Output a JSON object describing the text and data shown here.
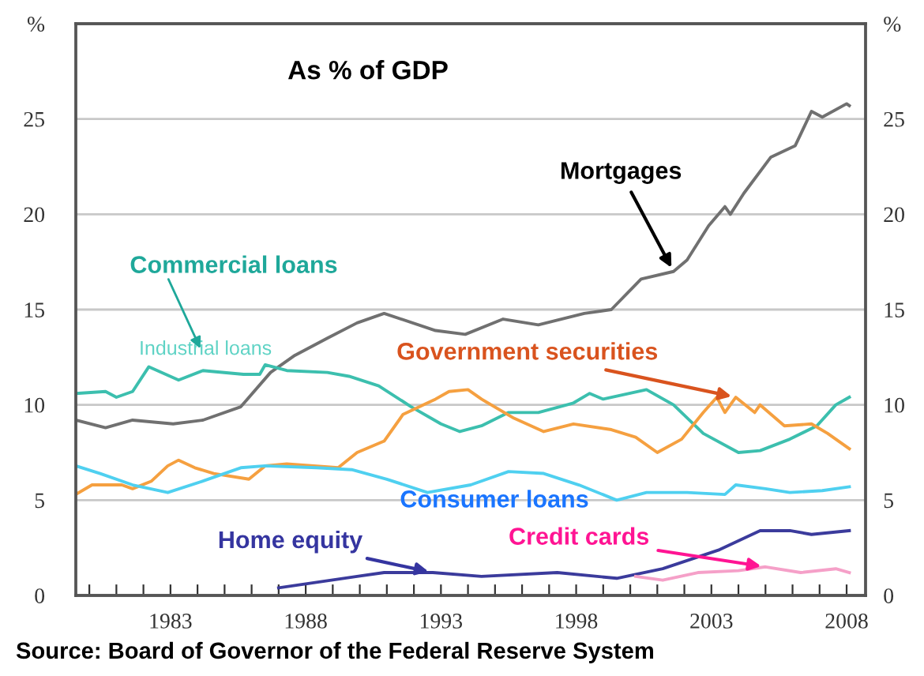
{
  "chart_data": {
    "type": "line",
    "title": "As % of GDP",
    "xlim": [
      1979.5,
      2008.7
    ],
    "ylim": [
      0,
      30
    ],
    "y2lim": [
      0,
      30
    ],
    "xticks": [
      {
        "value": 1980,
        "label": null
      },
      {
        "value": 1981,
        "label": null
      },
      {
        "value": 1982,
        "label": null
      },
      1983,
      {
        "value": 1984,
        "label": null
      },
      {
        "value": 1985,
        "label": null
      },
      {
        "value": 1986,
        "label": null
      },
      {
        "value": 1987,
        "label": null
      },
      1988,
      {
        "value": 1989,
        "label": null
      },
      {
        "value": 1990,
        "label": null
      },
      {
        "value": 1991,
        "label": null
      },
      {
        "value": 1992,
        "label": null
      },
      1993,
      {
        "value": 1994,
        "label": null
      },
      {
        "value": 1995,
        "label": null
      },
      {
        "value": 1996,
        "label": null
      },
      {
        "value": 1997,
        "label": null
      },
      1998,
      {
        "value": 1999,
        "label": null
      },
      {
        "value": 2000,
        "label": null
      },
      {
        "value": 2001,
        "label": null
      },
      {
        "value": 2002,
        "label": null
      },
      2003,
      {
        "value": 2004,
        "label": null
      },
      {
        "value": 2005,
        "label": null
      },
      {
        "value": 2006,
        "label": null
      },
      {
        "value": 2007,
        "label": null
      },
      2008
    ],
    "yticks": [
      0,
      5,
      10,
      15,
      20,
      25,
      {
        "value": 30,
        "label": "%"
      }
    ],
    "y2ticks": [
      0,
      5,
      10,
      15,
      20,
      25,
      {
        "value": 30,
        "label": "%"
      }
    ],
    "grid": "y",
    "legend": false,
    "marker": "none",
    "line_style": "solid",
    "series": [
      {
        "name": "Mortgages",
        "color": "#707070",
        "x": [
          1979.5,
          1980.6,
          1981.6,
          1983.1,
          1984.2,
          1985.6,
          1986.7,
          1987.6,
          1988.8,
          1989.9,
          1990.9,
          1992.8,
          1993.9,
          1995.3,
          1996.6,
          1998.3,
          1999.3,
          2000.4,
          2001.6,
          2002.1,
          2002.9,
          2003.5,
          2003.7,
          2004.2,
          2005.2,
          2006.1,
          2006.7,
          2007.1,
          2008.0,
          2008.1
        ],
        "values": [
          9.2,
          8.8,
          9.2,
          9.0,
          9.2,
          9.9,
          11.7,
          12.6,
          13.5,
          14.3,
          14.8,
          13.9,
          13.7,
          14.5,
          14.2,
          14.8,
          15.0,
          16.6,
          17.0,
          17.6,
          19.4,
          20.4,
          20.0,
          21.1,
          23.0,
          23.6,
          25.4,
          25.1,
          25.8,
          25.7
        ]
      },
      {
        "name": "Commercial loans",
        "color": "#3cbfae",
        "x": [
          1979.5,
          1980.6,
          1981.0,
          1981.6,
          1982.2,
          1983.3,
          1984.2,
          1985.7,
          1986.3,
          1986.5,
          1987.3,
          1988.8,
          1989.6,
          1990.7,
          1991.9,
          1993.0,
          1993.7,
          1994.5,
          1995.5,
          1996.6,
          1997.9,
          1998.5,
          1999.0,
          2000.6,
          2001.6,
          2002.7,
          2004.0,
          2004.8,
          2005.9,
          2006.9,
          2007.6,
          2008.1
        ],
        "values": [
          10.6,
          10.7,
          10.4,
          10.7,
          12.0,
          11.3,
          11.8,
          11.6,
          11.6,
          12.1,
          11.8,
          11.7,
          11.5,
          11.0,
          9.9,
          9.0,
          8.6,
          8.9,
          9.6,
          9.6,
          10.1,
          10.6,
          10.3,
          10.8,
          10.0,
          8.5,
          7.5,
          7.6,
          8.2,
          8.9,
          10.0,
          10.4
        ]
      },
      {
        "name": "Government securities",
        "color": "#f5a040",
        "x": [
          1979.5,
          1980.1,
          1981.2,
          1981.6,
          1982.3,
          1982.9,
          1983.3,
          1983.9,
          1984.6,
          1985.9,
          1986.5,
          1987.3,
          1989.2,
          1989.9,
          1990.9,
          1991.6,
          1992.8,
          1993.3,
          1994.0,
          1994.5,
          1995.7,
          1996.8,
          1997.9,
          1999.3,
          2000.2,
          2001.0,
          2001.9,
          2002.7,
          2003.2,
          2003.5,
          2003.9,
          2004.6,
          2004.8,
          2005.7,
          2006.7,
          2007.3,
          2008.1
        ],
        "values": [
          5.3,
          5.8,
          5.8,
          5.6,
          6.0,
          6.8,
          7.1,
          6.7,
          6.4,
          6.1,
          6.8,
          6.9,
          6.7,
          7.5,
          8.1,
          9.5,
          10.3,
          10.7,
          10.8,
          10.3,
          9.3,
          8.6,
          9.0,
          8.7,
          8.3,
          7.5,
          8.2,
          9.6,
          10.4,
          9.6,
          10.4,
          9.6,
          10.0,
          8.9,
          9.0,
          8.5,
          7.7
        ]
      },
      {
        "name": "Consumer loans",
        "color": "#4fd0f0",
        "x": [
          1979.5,
          1980.4,
          1981.6,
          1982.9,
          1984.2,
          1985.6,
          1986.5,
          1988.4,
          1989.7,
          1991.0,
          1992.5,
          1994.1,
          1995.5,
          1996.8,
          1998.1,
          1999.5,
          2000.6,
          2002.1,
          2003.5,
          2003.9,
          2005.0,
          2005.9,
          2007.1,
          2008.1
        ],
        "values": [
          6.8,
          6.4,
          5.8,
          5.4,
          6.0,
          6.7,
          6.8,
          6.7,
          6.6,
          6.1,
          5.4,
          5.8,
          6.5,
          6.4,
          5.8,
          5.0,
          5.4,
          5.4,
          5.3,
          5.8,
          5.6,
          5.4,
          5.5,
          5.7
        ]
      },
      {
        "name": "Home equity",
        "color": "#3b3b9c",
        "x": [
          1987.0,
          1989.9,
          1990.9,
          1992.7,
          1994.5,
          1997.3,
          1999.5,
          2001.2,
          2003.3,
          2004.8,
          2005.9,
          2006.7,
          2008.1
        ],
        "values": [
          0.4,
          1.0,
          1.2,
          1.2,
          1.0,
          1.2,
          0.9,
          1.4,
          2.4,
          3.4,
          3.4,
          3.2,
          3.4
        ]
      },
      {
        "name": "Credit cards",
        "color": "#f5a0c8",
        "x": [
          2000.2,
          2001.2,
          2002.5,
          2004.0,
          2005.0,
          2006.3,
          2007.6,
          2008.1
        ],
        "values": [
          1.0,
          0.8,
          1.2,
          1.3,
          1.5,
          1.2,
          1.4,
          1.2
        ]
      }
    ],
    "annotations": [
      "Industrial loans",
      "Source: Board of Governor of the Federal Reserve System"
    ]
  }
}
